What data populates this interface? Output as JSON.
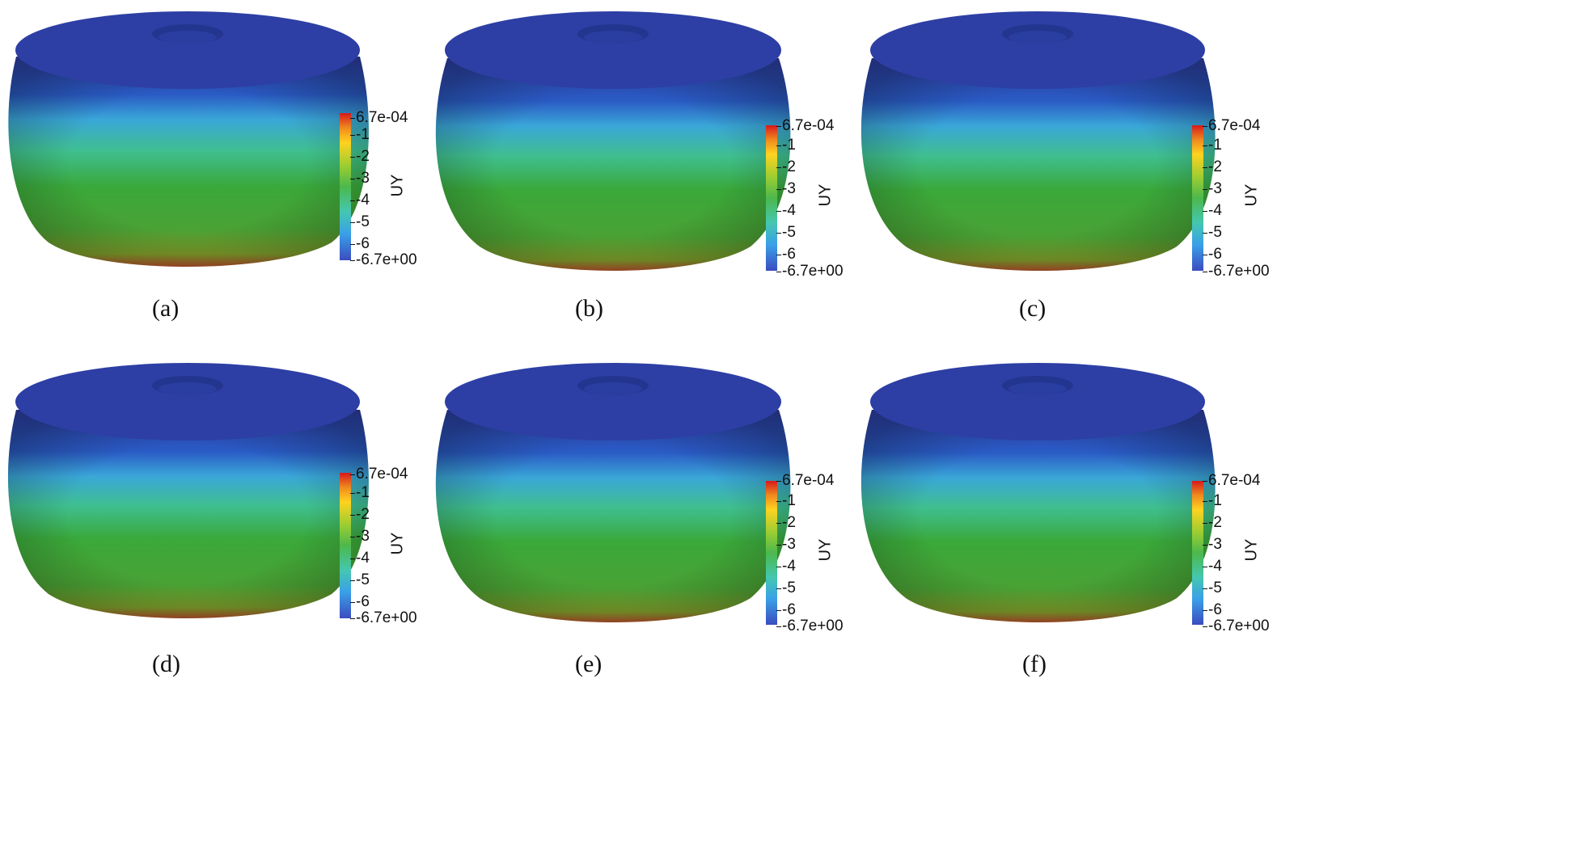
{
  "figure": {
    "colormap": {
      "low": "#3b4cc0",
      "mid": "#4cb84c",
      "high": "#d7191c",
      "title": "UY",
      "max_label": "6.7e-04",
      "min_label": "-6.7e+00",
      "ticks": [
        "-1",
        "-2",
        "-3",
        "-4",
        "-5",
        "-6"
      ]
    },
    "panels": [
      {
        "caption": "(a)"
      },
      {
        "caption": "(b)"
      },
      {
        "caption": "(c)"
      },
      {
        "caption": "(d)"
      },
      {
        "caption": "(e)"
      },
      {
        "caption": "(f)"
      }
    ]
  }
}
